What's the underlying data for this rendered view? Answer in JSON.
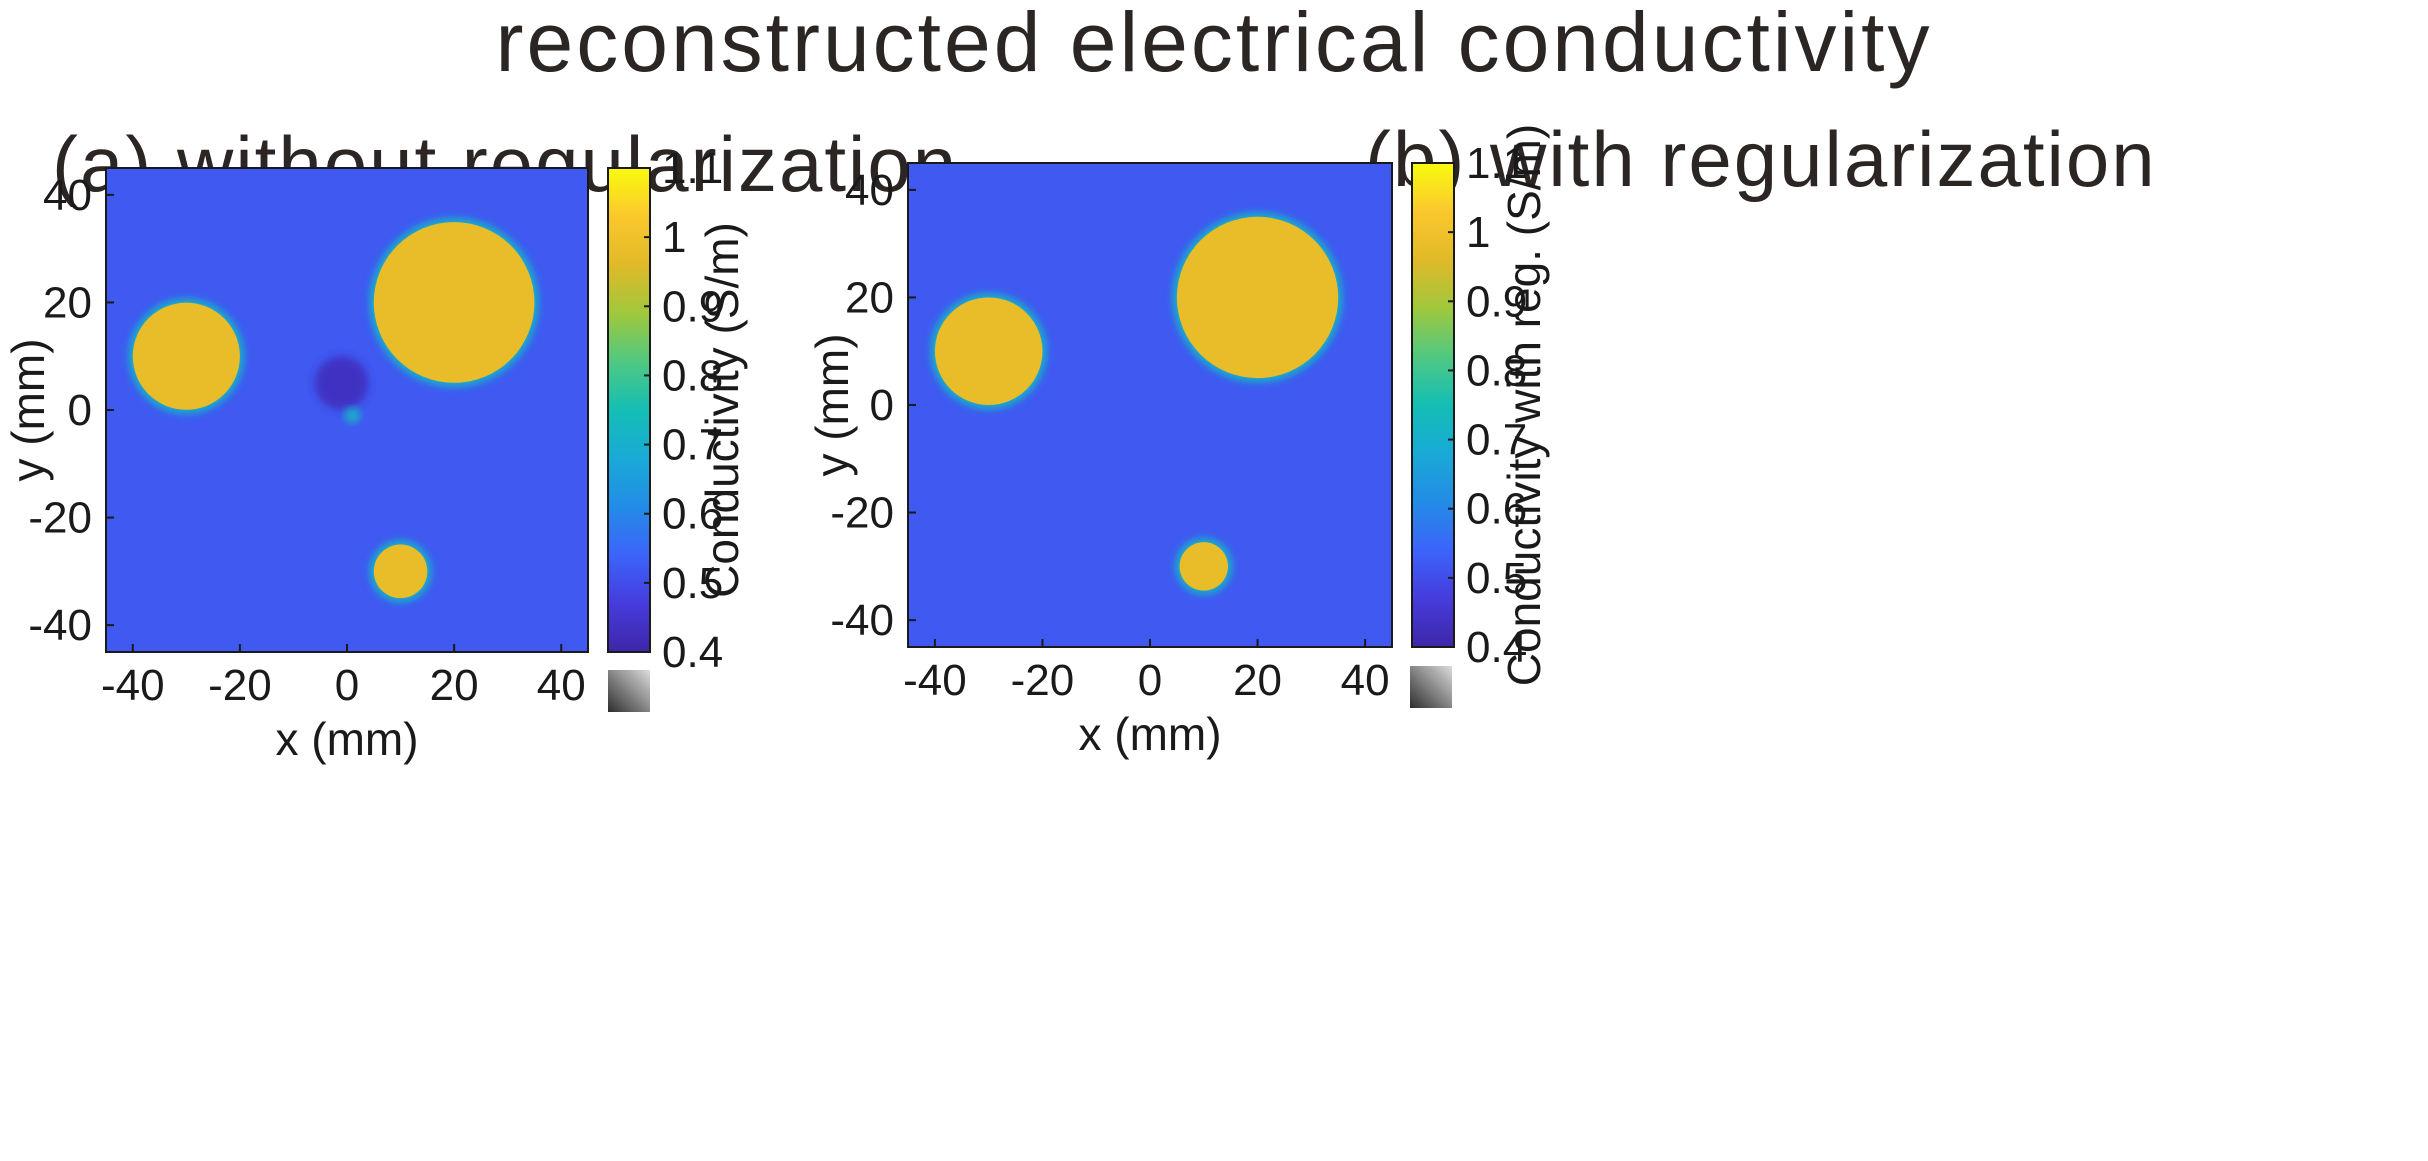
{
  "title": "reconstructed electrical conductivity",
  "chart_data": [
    {
      "type": "heatmap",
      "panel_title": "(a) without regularization",
      "xlabel": "x (mm)",
      "ylabel": "y (mm)",
      "xlim": [
        -45,
        45
      ],
      "ylim": [
        -45,
        45
      ],
      "xticks": [
        -40,
        -20,
        0,
        20,
        40
      ],
      "yticks": [
        -40,
        -20,
        0,
        20,
        40
      ],
      "colorbar": {
        "label": "Conductivity (S/m)",
        "range": [
          0.4,
          1.1
        ],
        "ticks": [
          "0.4",
          "0.5",
          "0.6",
          "0.7",
          "0.8",
          "0.9",
          "1",
          "1.1"
        ],
        "colormap": "parula"
      },
      "background_value": 0.52,
      "inclusions": [
        {
          "cx": -30,
          "cy": 10,
          "r": 10,
          "value": 0.98
        },
        {
          "cx": 20,
          "cy": 20,
          "r": 15,
          "value": 0.98
        },
        {
          "cx": 10,
          "cy": -30,
          "r": 5,
          "value": 0.98
        }
      ],
      "artifacts": [
        {
          "cx": -1,
          "cy": 5,
          "r": 5,
          "value": 0.43
        },
        {
          "cx": 1,
          "cy": -1,
          "r": 1.5,
          "value": 0.72
        }
      ]
    },
    {
      "type": "heatmap",
      "panel_title": "(b) with regularization",
      "xlabel": "x (mm)",
      "ylabel": "y (mm)",
      "xlim": [
        -45,
        45
      ],
      "ylim": [
        -45,
        45
      ],
      "xticks": [
        -40,
        -20,
        0,
        20,
        40
      ],
      "yticks": [
        -40,
        -20,
        0,
        20,
        40
      ],
      "colorbar": {
        "label": "Conductivity with reg. (S/m)",
        "range": [
          0.4,
          1.1
        ],
        "ticks": [
          "0.4",
          "0.5",
          "0.6",
          "0.7",
          "0.8",
          "0.9",
          "1",
          "1.1"
        ],
        "colormap": "parula"
      },
      "background_value": 0.52,
      "inclusions": [
        {
          "cx": -30,
          "cy": 10,
          "r": 10,
          "value": 0.98
        },
        {
          "cx": 20,
          "cy": 20,
          "r": 15,
          "value": 0.98
        },
        {
          "cx": 10,
          "cy": -30,
          "r": 4.5,
          "value": 0.98
        }
      ],
      "artifacts": []
    }
  ]
}
